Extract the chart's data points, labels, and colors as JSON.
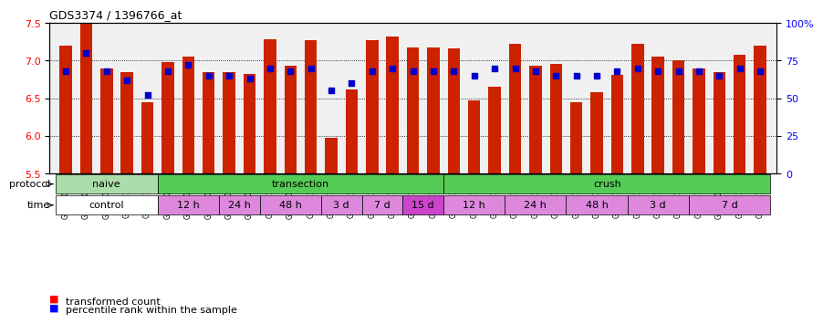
{
  "title": "GDS3374 / 1396766_at",
  "samples": [
    "GSM250998",
    "GSM250999",
    "GSM251000",
    "GSM251001",
    "GSM251002",
    "GSM251003",
    "GSM251004",
    "GSM251005",
    "GSM251006",
    "GSM251007",
    "GSM251008",
    "GSM251009",
    "GSM251010",
    "GSM251011",
    "GSM251012",
    "GSM251013",
    "GSM251014",
    "GSM251015",
    "GSM251016",
    "GSM251017",
    "GSM251018",
    "GSM251019",
    "GSM251020",
    "GSM251021",
    "GSM251022",
    "GSM251023",
    "GSM251024",
    "GSM251025",
    "GSM251026",
    "GSM251027",
    "GSM251028",
    "GSM251029",
    "GSM251030",
    "GSM251031",
    "GSM251032"
  ],
  "bar_values": [
    7.2,
    7.5,
    6.9,
    6.85,
    6.45,
    6.98,
    7.05,
    6.85,
    6.85,
    6.82,
    7.28,
    6.93,
    7.27,
    5.97,
    6.62,
    7.27,
    7.32,
    7.18,
    7.18,
    7.16,
    6.47,
    6.65,
    7.22,
    6.93,
    6.95,
    6.45,
    6.58,
    6.81,
    7.22,
    7.05,
    7.0,
    6.9,
    6.85,
    7.08,
    7.2
  ],
  "blue_values": [
    68,
    80,
    68,
    62,
    52,
    68,
    72,
    65,
    65,
    63,
    70,
    68,
    70,
    55,
    60,
    68,
    70,
    68,
    68,
    68,
    65,
    70,
    70,
    68,
    65,
    65,
    65,
    68,
    70,
    68,
    68,
    68,
    65,
    70,
    68
  ],
  "ylim_left": [
    5.5,
    7.5
  ],
  "ylim_right": [
    0,
    100
  ],
  "yticks_left": [
    5.5,
    6.0,
    6.5,
    7.0,
    7.5
  ],
  "yticks_right": [
    0,
    25,
    50,
    75,
    100
  ],
  "bar_color": "#cc2200",
  "dot_color": "#0000cc",
  "bg_color": "#f0f0f0",
  "protocol_row": [
    {
      "label": "naive",
      "start": 0,
      "end": 4,
      "color": "#aaffaa"
    },
    {
      "label": "transection",
      "start": 5,
      "end": 18,
      "color": "#66dd66"
    },
    {
      "label": "crush",
      "start": 19,
      "end": 34,
      "color": "#66dd66"
    }
  ],
  "time_row": [
    {
      "label": "control",
      "start": 0,
      "end": 4,
      "color": "#ffffff"
    },
    {
      "label": "12 h",
      "start": 5,
      "end": 7,
      "color": "#ee88ee"
    },
    {
      "label": "24 h",
      "start": 8,
      "end": 9,
      "color": "#ee88ee"
    },
    {
      "label": "48 h",
      "start": 10,
      "end": 12,
      "color": "#ee88ee"
    },
    {
      "label": "3 d",
      "start": 13,
      "end": 14,
      "color": "#ee88ee"
    },
    {
      "label": "7 d",
      "start": 15,
      "end": 16,
      "color": "#ee88ee"
    },
    {
      "label": "15 d",
      "start": 17,
      "end": 18,
      "color": "#dd44dd"
    },
    {
      "label": "12 h",
      "start": 19,
      "end": 21,
      "color": "#ee88ee"
    },
    {
      "label": "24 h",
      "start": 22,
      "end": 24,
      "color": "#ee88ee"
    },
    {
      "label": "48 h",
      "start": 25,
      "end": 27,
      "color": "#ee88ee"
    },
    {
      "label": "3 d",
      "start": 28,
      "end": 30,
      "color": "#ee88ee"
    },
    {
      "label": "7 d",
      "start": 31,
      "end": 34,
      "color": "#ee88ee"
    }
  ]
}
